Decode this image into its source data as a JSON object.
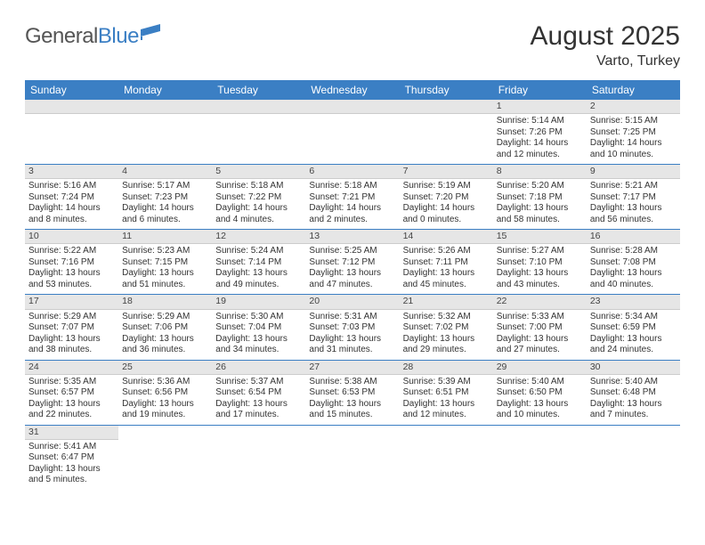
{
  "logo": {
    "part1": "General",
    "part2": "Blue"
  },
  "title": "August 2025",
  "location": "Varto, Turkey",
  "colors": {
    "header_bg": "#3b7fc4",
    "header_text": "#ffffff",
    "daynum_bg": "#e6e6e6",
    "row_border": "#3b7fc4",
    "text": "#333333"
  },
  "day_headers": [
    "Sunday",
    "Monday",
    "Tuesday",
    "Wednesday",
    "Thursday",
    "Friday",
    "Saturday"
  ],
  "weeks": [
    [
      null,
      null,
      null,
      null,
      null,
      {
        "n": "1",
        "sunrise": "Sunrise: 5:14 AM",
        "sunset": "Sunset: 7:26 PM",
        "daylight": "Daylight: 14 hours and 12 minutes."
      },
      {
        "n": "2",
        "sunrise": "Sunrise: 5:15 AM",
        "sunset": "Sunset: 7:25 PM",
        "daylight": "Daylight: 14 hours and 10 minutes."
      }
    ],
    [
      {
        "n": "3",
        "sunrise": "Sunrise: 5:16 AM",
        "sunset": "Sunset: 7:24 PM",
        "daylight": "Daylight: 14 hours and 8 minutes."
      },
      {
        "n": "4",
        "sunrise": "Sunrise: 5:17 AM",
        "sunset": "Sunset: 7:23 PM",
        "daylight": "Daylight: 14 hours and 6 minutes."
      },
      {
        "n": "5",
        "sunrise": "Sunrise: 5:18 AM",
        "sunset": "Sunset: 7:22 PM",
        "daylight": "Daylight: 14 hours and 4 minutes."
      },
      {
        "n": "6",
        "sunrise": "Sunrise: 5:18 AM",
        "sunset": "Sunset: 7:21 PM",
        "daylight": "Daylight: 14 hours and 2 minutes."
      },
      {
        "n": "7",
        "sunrise": "Sunrise: 5:19 AM",
        "sunset": "Sunset: 7:20 PM",
        "daylight": "Daylight: 14 hours and 0 minutes."
      },
      {
        "n": "8",
        "sunrise": "Sunrise: 5:20 AM",
        "sunset": "Sunset: 7:18 PM",
        "daylight": "Daylight: 13 hours and 58 minutes."
      },
      {
        "n": "9",
        "sunrise": "Sunrise: 5:21 AM",
        "sunset": "Sunset: 7:17 PM",
        "daylight": "Daylight: 13 hours and 56 minutes."
      }
    ],
    [
      {
        "n": "10",
        "sunrise": "Sunrise: 5:22 AM",
        "sunset": "Sunset: 7:16 PM",
        "daylight": "Daylight: 13 hours and 53 minutes."
      },
      {
        "n": "11",
        "sunrise": "Sunrise: 5:23 AM",
        "sunset": "Sunset: 7:15 PM",
        "daylight": "Daylight: 13 hours and 51 minutes."
      },
      {
        "n": "12",
        "sunrise": "Sunrise: 5:24 AM",
        "sunset": "Sunset: 7:14 PM",
        "daylight": "Daylight: 13 hours and 49 minutes."
      },
      {
        "n": "13",
        "sunrise": "Sunrise: 5:25 AM",
        "sunset": "Sunset: 7:12 PM",
        "daylight": "Daylight: 13 hours and 47 minutes."
      },
      {
        "n": "14",
        "sunrise": "Sunrise: 5:26 AM",
        "sunset": "Sunset: 7:11 PM",
        "daylight": "Daylight: 13 hours and 45 minutes."
      },
      {
        "n": "15",
        "sunrise": "Sunrise: 5:27 AM",
        "sunset": "Sunset: 7:10 PM",
        "daylight": "Daylight: 13 hours and 43 minutes."
      },
      {
        "n": "16",
        "sunrise": "Sunrise: 5:28 AM",
        "sunset": "Sunset: 7:08 PM",
        "daylight": "Daylight: 13 hours and 40 minutes."
      }
    ],
    [
      {
        "n": "17",
        "sunrise": "Sunrise: 5:29 AM",
        "sunset": "Sunset: 7:07 PM",
        "daylight": "Daylight: 13 hours and 38 minutes."
      },
      {
        "n": "18",
        "sunrise": "Sunrise: 5:29 AM",
        "sunset": "Sunset: 7:06 PM",
        "daylight": "Daylight: 13 hours and 36 minutes."
      },
      {
        "n": "19",
        "sunrise": "Sunrise: 5:30 AM",
        "sunset": "Sunset: 7:04 PM",
        "daylight": "Daylight: 13 hours and 34 minutes."
      },
      {
        "n": "20",
        "sunrise": "Sunrise: 5:31 AM",
        "sunset": "Sunset: 7:03 PM",
        "daylight": "Daylight: 13 hours and 31 minutes."
      },
      {
        "n": "21",
        "sunrise": "Sunrise: 5:32 AM",
        "sunset": "Sunset: 7:02 PM",
        "daylight": "Daylight: 13 hours and 29 minutes."
      },
      {
        "n": "22",
        "sunrise": "Sunrise: 5:33 AM",
        "sunset": "Sunset: 7:00 PM",
        "daylight": "Daylight: 13 hours and 27 minutes."
      },
      {
        "n": "23",
        "sunrise": "Sunrise: 5:34 AM",
        "sunset": "Sunset: 6:59 PM",
        "daylight": "Daylight: 13 hours and 24 minutes."
      }
    ],
    [
      {
        "n": "24",
        "sunrise": "Sunrise: 5:35 AM",
        "sunset": "Sunset: 6:57 PM",
        "daylight": "Daylight: 13 hours and 22 minutes."
      },
      {
        "n": "25",
        "sunrise": "Sunrise: 5:36 AM",
        "sunset": "Sunset: 6:56 PM",
        "daylight": "Daylight: 13 hours and 19 minutes."
      },
      {
        "n": "26",
        "sunrise": "Sunrise: 5:37 AM",
        "sunset": "Sunset: 6:54 PM",
        "daylight": "Daylight: 13 hours and 17 minutes."
      },
      {
        "n": "27",
        "sunrise": "Sunrise: 5:38 AM",
        "sunset": "Sunset: 6:53 PM",
        "daylight": "Daylight: 13 hours and 15 minutes."
      },
      {
        "n": "28",
        "sunrise": "Sunrise: 5:39 AM",
        "sunset": "Sunset: 6:51 PM",
        "daylight": "Daylight: 13 hours and 12 minutes."
      },
      {
        "n": "29",
        "sunrise": "Sunrise: 5:40 AM",
        "sunset": "Sunset: 6:50 PM",
        "daylight": "Daylight: 13 hours and 10 minutes."
      },
      {
        "n": "30",
        "sunrise": "Sunrise: 5:40 AM",
        "sunset": "Sunset: 6:48 PM",
        "daylight": "Daylight: 13 hours and 7 minutes."
      }
    ],
    [
      {
        "n": "31",
        "sunrise": "Sunrise: 5:41 AM",
        "sunset": "Sunset: 6:47 PM",
        "daylight": "Daylight: 13 hours and 5 minutes."
      },
      null,
      null,
      null,
      null,
      null,
      null
    ]
  ]
}
